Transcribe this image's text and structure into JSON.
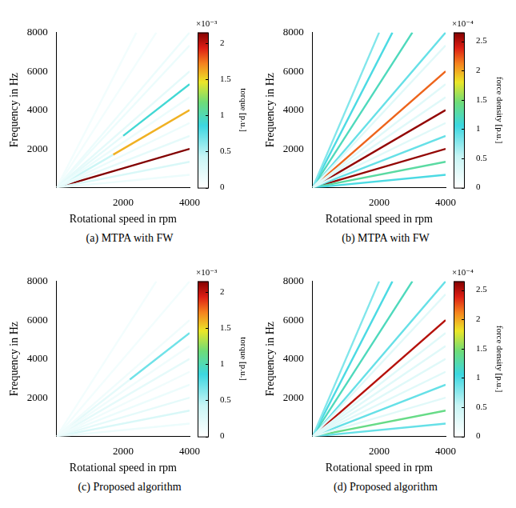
{
  "chart_data": [
    {
      "type": "line",
      "caption": "(a) MTPA with FW",
      "xlabel": "Rotational speed in rpm",
      "ylabel": "Frequency in Hz",
      "xlim": [
        0,
        4000
      ],
      "ylim": [
        0,
        8000
      ],
      "xticks": [
        2000,
        4000
      ],
      "yticks": [
        2000,
        4000,
        6000,
        8000
      ],
      "grid": false,
      "colorbar": {
        "label": "torque [p.u.]",
        "exponent": "×10⁻³",
        "range": [
          0,
          0.00215
        ],
        "ticks": [
          0,
          {
            "value": 0.0005,
            "label": "0.5"
          },
          {
            "value": 0.001,
            "label": "1"
          },
          {
            "value": 0.0015,
            "label": "1.5"
          },
          {
            "value": 0.002,
            "label": "2"
          }
        ]
      },
      "series": [
        {
          "x": [
            0,
            4000
          ],
          "y": [
            0,
            667
          ],
          "value": 0.00015
        },
        {
          "x": [
            0,
            4000
          ],
          "y": [
            0,
            2667
          ],
          "value": 0.0002
        },
        {
          "x": [
            0,
            4000
          ],
          "y": [
            0,
            3333
          ],
          "value": 0.00015
        },
        {
          "x": [
            0,
            4000
          ],
          "y": [
            0,
            4667
          ],
          "value": 0.00015
        },
        {
          "x": [
            0,
            4000
          ],
          "y": [
            0,
            6000
          ],
          "value": 0.0002
        },
        {
          "x": [
            0,
            4000
          ],
          "y": [
            0,
            7333
          ],
          "value": 0.00015
        },
        {
          "x": [
            0,
            4000
          ],
          "y": [
            0,
            8000
          ],
          "value": 0.00015
        },
        {
          "x": [
            0,
            3000
          ],
          "y": [
            0,
            8000
          ],
          "value": 0.0001
        },
        {
          "x": [
            0,
            2400
          ],
          "y": [
            0,
            8000
          ],
          "value": 0.0001
        },
        {
          "x": [
            0,
            4000
          ],
          "y": [
            0,
            1333
          ],
          "value": 0.0003
        },
        {
          "x": [
            0,
            2000
          ],
          "y": [
            0,
            2667
          ],
          "value": 0.0002
        },
        {
          "x": [
            2000,
            4000
          ],
          "y": [
            2667,
            5333
          ],
          "value": 0.0009
        },
        {
          "x": [
            0,
            1700
          ],
          "y": [
            0,
            1700
          ],
          "value": 0.0004
        },
        {
          "x": [
            1700,
            4000
          ],
          "y": [
            1700,
            4000
          ],
          "value": 0.0016
        },
        {
          "x": [
            0,
            4000
          ],
          "y": [
            0,
            2000
          ],
          "value": 0.00215
        }
      ]
    },
    {
      "type": "line",
      "caption": "(b) MTPA with FW",
      "xlabel": "Rotational speed in rpm",
      "ylabel": "Frequency in Hz",
      "xlim": [
        0,
        4000
      ],
      "ylim": [
        0,
        8000
      ],
      "xticks": [
        2000,
        4000
      ],
      "yticks": [
        2000,
        4000,
        6000,
        8000
      ],
      "grid": false,
      "colorbar": {
        "label": "force density [p.u.]",
        "exponent": "×10⁻⁴",
        "range": [
          0,
          0.000265
        ],
        "ticks": [
          0,
          {
            "value": 5e-05,
            "label": "0.5"
          },
          {
            "value": 0.0001,
            "label": "1"
          },
          {
            "value": 0.00015,
            "label": "1.5"
          },
          {
            "value": 0.0002,
            "label": "2"
          },
          {
            "value": 0.00025,
            "label": "2.5"
          }
        ]
      },
      "series": [
        {
          "x": [
            0,
            4000
          ],
          "y": [
            0,
            3333
          ],
          "value": 3e-05
        },
        {
          "x": [
            0,
            4000
          ],
          "y": [
            0,
            4667
          ],
          "value": 3e-05
        },
        {
          "x": [
            0,
            4000
          ],
          "y": [
            0,
            5333
          ],
          "value": 3e-05
        },
        {
          "x": [
            0,
            4000
          ],
          "y": [
            0,
            7333
          ],
          "value": 3e-05
        },
        {
          "x": [
            0,
            2000
          ],
          "y": [
            0,
            8000
          ],
          "value": 8e-05
        },
        {
          "x": [
            0,
            2400
          ],
          "y": [
            0,
            8000
          ],
          "value": 0.0001
        },
        {
          "x": [
            0,
            3000
          ],
          "y": [
            0,
            8000
          ],
          "value": 0.00012
        },
        {
          "x": [
            0,
            4000
          ],
          "y": [
            0,
            8000
          ],
          "value": 9e-05
        },
        {
          "x": [
            0,
            4000
          ],
          "y": [
            0,
            2667
          ],
          "value": 9e-05
        },
        {
          "x": [
            0,
            4000
          ],
          "y": [
            0,
            667
          ],
          "value": 0.0001
        },
        {
          "x": [
            0,
            4000
          ],
          "y": [
            0,
            1333
          ],
          "value": 0.00013
        },
        {
          "x": [
            0,
            4000
          ],
          "y": [
            0,
            6000
          ],
          "value": 0.00022
        },
        {
          "x": [
            0,
            4000
          ],
          "y": [
            0,
            4000
          ],
          "value": 0.00026
        },
        {
          "x": [
            0,
            4000
          ],
          "y": [
            0,
            2000
          ],
          "value": 0.00026
        }
      ]
    },
    {
      "type": "line",
      "caption": "(c) Proposed algorithm",
      "xlabel": "Rotational speed in rpm",
      "ylabel": "Frequency in Hz",
      "xlim": [
        0,
        4000
      ],
      "ylim": [
        0,
        8000
      ],
      "xticks": [
        2000,
        4000
      ],
      "yticks": [
        2000,
        4000,
        6000,
        8000
      ],
      "grid": false,
      "colorbar": {
        "label": "torque [p.u.]",
        "exponent": "×10⁻³",
        "range": [
          0,
          0.00215
        ],
        "ticks": [
          0,
          {
            "value": 0.0005,
            "label": "0.5"
          },
          {
            "value": 0.001,
            "label": "1"
          },
          {
            "value": 0.0015,
            "label": "1.5"
          },
          {
            "value": 0.002,
            "label": "2"
          }
        ]
      },
      "series": [
        {
          "x": [
            0,
            4000
          ],
          "y": [
            0,
            667
          ],
          "value": 0.00015
        },
        {
          "x": [
            0,
            4000
          ],
          "y": [
            0,
            2667
          ],
          "value": 0.00015
        },
        {
          "x": [
            0,
            4000
          ],
          "y": [
            0,
            3333
          ],
          "value": 0.00012
        },
        {
          "x": [
            0,
            4000
          ],
          "y": [
            0,
            4667
          ],
          "value": 0.00012
        },
        {
          "x": [
            0,
            4000
          ],
          "y": [
            0,
            6000
          ],
          "value": 0.00012
        },
        {
          "x": [
            0,
            4000
          ],
          "y": [
            0,
            8000
          ],
          "value": 0.0001
        },
        {
          "x": [
            0,
            3000
          ],
          "y": [
            0,
            8000
          ],
          "value": 0.0001
        },
        {
          "x": [
            0,
            4000
          ],
          "y": [
            0,
            2000
          ],
          "value": 0.0002
        },
        {
          "x": [
            0,
            4000
          ],
          "y": [
            0,
            4000
          ],
          "value": 0.0002
        },
        {
          "x": [
            0,
            4000
          ],
          "y": [
            0,
            1333
          ],
          "value": 0.0003
        },
        {
          "x": [
            0,
            2200
          ],
          "y": [
            0,
            2933
          ],
          "value": 0.0002
        },
        {
          "x": [
            2200,
            4000
          ],
          "y": [
            2933,
            5333
          ],
          "value": 0.0007
        }
      ]
    },
    {
      "type": "line",
      "caption": "(d) Proposed algorithm",
      "xlabel": "Rotational speed in rpm",
      "ylabel": "Frequency in Hz",
      "xlim": [
        0,
        4000
      ],
      "ylim": [
        0,
        8000
      ],
      "xticks": [
        2000,
        4000
      ],
      "yticks": [
        2000,
        4000,
        6000,
        8000
      ],
      "grid": false,
      "colorbar": {
        "label": "force density [p.u.]",
        "exponent": "×10⁻⁴",
        "range": [
          0,
          0.000265
        ],
        "ticks": [
          0,
          {
            "value": 5e-05,
            "label": "0.5"
          },
          {
            "value": 0.0001,
            "label": "1"
          },
          {
            "value": 0.00015,
            "label": "1.5"
          },
          {
            "value": 0.0002,
            "label": "2"
          },
          {
            "value": 0.00025,
            "label": "2.5"
          }
        ]
      },
      "series": [
        {
          "x": [
            0,
            4000
          ],
          "y": [
            0,
            3333
          ],
          "value": 3e-05
        },
        {
          "x": [
            0,
            4000
          ],
          "y": [
            0,
            4667
          ],
          "value": 3e-05
        },
        {
          "x": [
            0,
            4000
          ],
          "y": [
            0,
            5333
          ],
          "value": 3e-05
        },
        {
          "x": [
            0,
            4000
          ],
          "y": [
            0,
            7333
          ],
          "value": 3e-05
        },
        {
          "x": [
            0,
            4000
          ],
          "y": [
            0,
            2000
          ],
          "value": 3e-05
        },
        {
          "x": [
            0,
            4000
          ],
          "y": [
            0,
            4000
          ],
          "value": 3e-05
        },
        {
          "x": [
            0,
            2000
          ],
          "y": [
            0,
            8000
          ],
          "value": 8e-05
        },
        {
          "x": [
            0,
            2400
          ],
          "y": [
            0,
            8000
          ],
          "value": 0.0001
        },
        {
          "x": [
            0,
            3000
          ],
          "y": [
            0,
            8000
          ],
          "value": 0.00012
        },
        {
          "x": [
            0,
            4000
          ],
          "y": [
            0,
            8000
          ],
          "value": 9e-05
        },
        {
          "x": [
            0,
            4000
          ],
          "y": [
            0,
            2667
          ],
          "value": 9e-05
        },
        {
          "x": [
            0,
            4000
          ],
          "y": [
            0,
            667
          ],
          "value": 9e-05
        },
        {
          "x": [
            0,
            4000
          ],
          "y": [
            0,
            1333
          ],
          "value": 0.00014
        },
        {
          "x": [
            0,
            4000
          ],
          "y": [
            0,
            6000
          ],
          "value": 0.00025
        }
      ]
    }
  ]
}
